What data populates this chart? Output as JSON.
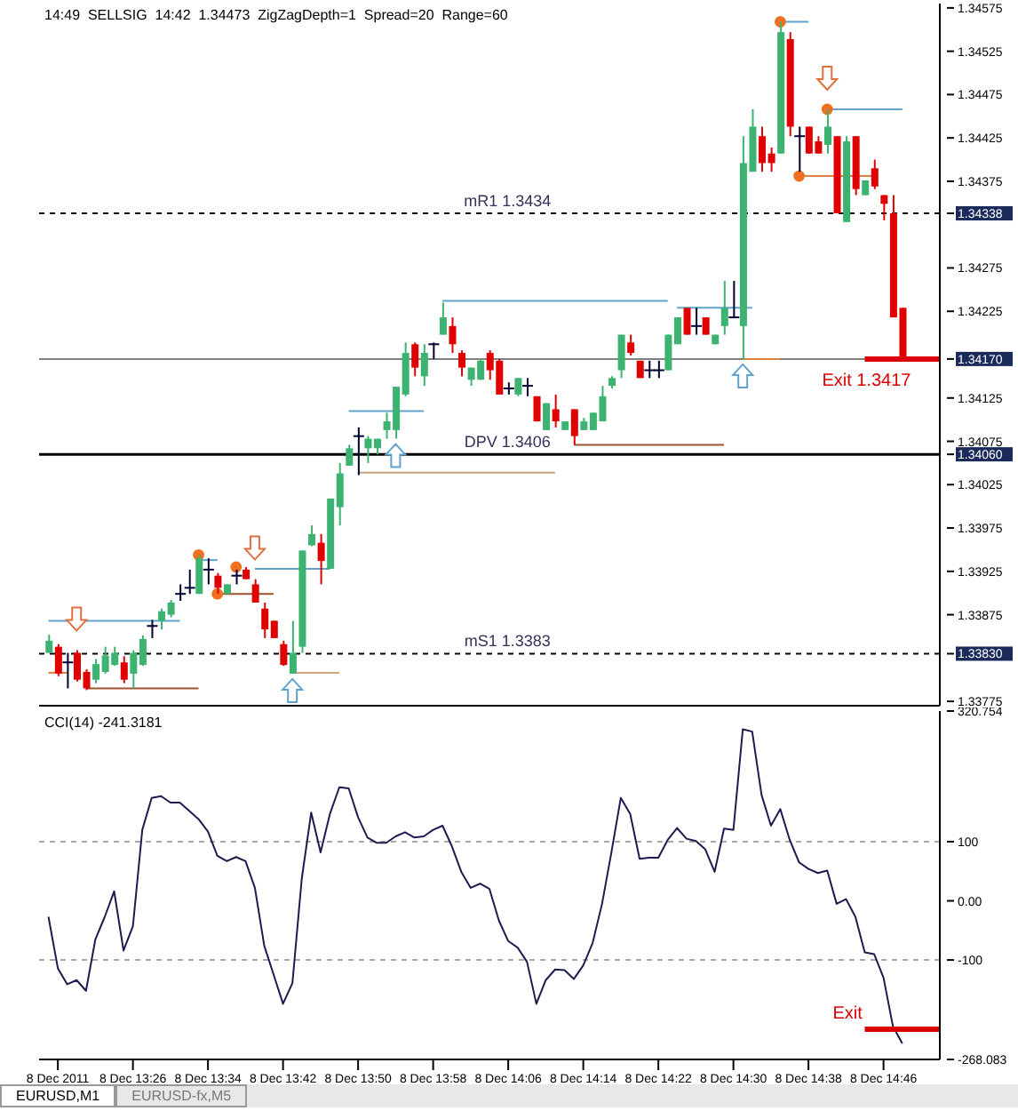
{
  "chart_data": [
    {
      "type": "candlestick",
      "title": "14:49  SELLSIG  14:42  1.34473  ZigZagDepth=1  Spread=20  Range=60",
      "tick_labels": "y",
      "colors": [
        "#3cb371",
        "#e00000",
        "#000033",
        "#e00000",
        "#e00000",
        "#3cb371",
        "#3cb371",
        "#3cb371",
        "#e00000",
        "#3cb371",
        "#3cb371",
        "#000033",
        "#3cb371",
        "#3cb371",
        "#000033",
        "#000033",
        "#3cb371",
        "#000033",
        "#e00000",
        "#3cb371",
        "#000033",
        "#e00000",
        "#e00000",
        "#e00000",
        "#e00000",
        "#e00000",
        "#3cb371",
        "#3cb371",
        "#3cb371",
        "#e00000",
        "#3cb371",
        "#3cb371",
        "#3cb371",
        "#000033",
        "#3cb371",
        "#3cb371",
        "#3cb371",
        "#3cb371",
        "#3cb371",
        "#e00000",
        "#3cb371",
        "#000033",
        "#3cb371",
        "#e00000",
        "#e00000",
        "#3cb371",
        "#3cb371",
        "#e00000",
        "#e00000",
        "#000033",
        "#3cb371",
        "#000033",
        "#e00000",
        "#3cb371",
        "#e00000",
        "#3cb371",
        "#e00000",
        "#3cb371",
        "#3cb371",
        "#3cb371",
        "#3cb371",
        "#3cb371",
        "#e00000",
        "#e00000",
        "#000033",
        "#000033",
        "#3cb371",
        "#3cb371",
        "#e00000",
        "#000033",
        "#e00000",
        "#3cb371",
        "#3cb371",
        "#000033",
        "#3cb371",
        "#3cb371",
        "#e00000",
        "#e00000",
        "#3cb371",
        "#e00000",
        "#000033",
        "#e00000",
        "#e00000",
        "#3cb371",
        "#e00000",
        "#3cb371",
        "#e00000",
        "#3cb371",
        "#e00000",
        "#e00000",
        "#e00000",
        "#e00000"
      ],
      "x": [
        "2011-12-08T13:17",
        "2011-12-08T13:18",
        "2011-12-08T13:19",
        "2011-12-08T13:20",
        "2011-12-08T13:21",
        "2011-12-08T13:22",
        "2011-12-08T13:23",
        "2011-12-08T13:24",
        "2011-12-08T13:25",
        "2011-12-08T13:26",
        "2011-12-08T13:27",
        "2011-12-08T13:28",
        "2011-12-08T13:29",
        "2011-12-08T13:30",
        "2011-12-08T13:31",
        "2011-12-08T13:32",
        "2011-12-08T13:33",
        "2011-12-08T13:34",
        "2011-12-08T13:35",
        "2011-12-08T13:36",
        "2011-12-08T13:37",
        "2011-12-08T13:38",
        "2011-12-08T13:39",
        "2011-12-08T13:40",
        "2011-12-08T13:41",
        "2011-12-08T13:42",
        "2011-12-08T13:43",
        "2011-12-08T13:44",
        "2011-12-08T13:45",
        "2011-12-08T13:46",
        "2011-12-08T13:47",
        "2011-12-08T13:48",
        "2011-12-08T13:49",
        "2011-12-08T13:50",
        "2011-12-08T13:51",
        "2011-12-08T13:52",
        "2011-12-08T13:53",
        "2011-12-08T13:54",
        "2011-12-08T13:55",
        "2011-12-08T13:56",
        "2011-12-08T13:57",
        "2011-12-08T13:58",
        "2011-12-08T13:59",
        "2011-12-08T14:00",
        "2011-12-08T14:01",
        "2011-12-08T14:02",
        "2011-12-08T14:03",
        "2011-12-08T14:04",
        "2011-12-08T14:05",
        "2011-12-08T14:06",
        "2011-12-08T14:07",
        "2011-12-08T14:08",
        "2011-12-08T14:09",
        "2011-12-08T14:10",
        "2011-12-08T14:11",
        "2011-12-08T14:12",
        "2011-12-08T14:13",
        "2011-12-08T14:14",
        "2011-12-08T14:15",
        "2011-12-08T14:16",
        "2011-12-08T14:17",
        "2011-12-08T14:18",
        "2011-12-08T14:19",
        "2011-12-08T14:20",
        "2011-12-08T14:21",
        "2011-12-08T14:22",
        "2011-12-08T14:23",
        "2011-12-08T14:24",
        "2011-12-08T14:25",
        "2011-12-08T14:26",
        "2011-12-08T14:27",
        "2011-12-08T14:28",
        "2011-12-08T14:29",
        "2011-12-08T14:30",
        "2011-12-08T14:31",
        "2011-12-08T14:32",
        "2011-12-08T14:33",
        "2011-12-08T14:34",
        "2011-12-08T14:35",
        "2011-12-08T14:36",
        "2011-12-08T14:37",
        "2011-12-08T14:38",
        "2011-12-08T14:39",
        "2011-12-08T14:40",
        "2011-12-08T14:41",
        "2011-12-08T14:42",
        "2011-12-08T14:43",
        "2011-12-08T14:44",
        "2011-12-08T14:45",
        "2011-12-08T14:46",
        "2011-12-08T14:47",
        "2011-12-08T14:48"
      ],
      "ohlc": [
        [
          1.33831,
          1.33852,
          1.33831,
          1.33845
        ],
        [
          1.33838,
          1.33841,
          1.33804,
          1.33807
        ],
        [
          1.3382,
          1.33831,
          1.3379,
          1.3382
        ],
        [
          1.33831,
          1.33834,
          1.33798,
          1.338
        ],
        [
          1.33809,
          1.33812,
          1.33788,
          1.3379
        ],
        [
          1.338,
          1.33824,
          1.33796,
          1.33818
        ],
        [
          1.33809,
          1.33838,
          1.33807,
          1.33828
        ],
        [
          1.33817,
          1.33838,
          1.33816,
          1.33831
        ],
        [
          1.3382,
          1.33827,
          1.33796,
          1.338
        ],
        [
          1.33807,
          1.33834,
          1.3379,
          1.33831
        ],
        [
          1.33817,
          1.33851,
          1.33816,
          1.33847
        ],
        [
          1.33862,
          1.33869,
          1.33848,
          1.33862
        ],
        [
          1.33868,
          1.33882,
          1.33858,
          1.33879
        ],
        [
          1.33875,
          1.33892,
          1.33872,
          1.33889
        ],
        [
          1.33899,
          1.3391,
          1.33891,
          1.33899
        ],
        [
          1.33906,
          1.33927,
          1.33899,
          1.33906
        ],
        [
          1.33899,
          1.33944,
          1.33899,
          1.3394
        ],
        [
          1.33927,
          1.3394,
          1.3391,
          1.33927
        ],
        [
          1.3392,
          1.33923,
          1.33899,
          1.33906
        ],
        [
          1.33899,
          1.3391,
          1.33899,
          1.3391
        ],
        [
          1.3392,
          1.33927,
          1.3391,
          1.3392
        ],
        [
          1.33927,
          1.3393,
          1.33916,
          1.33916
        ],
        [
          1.3391,
          1.33916,
          1.33889,
          1.33889
        ],
        [
          1.33882,
          1.33889,
          1.33848,
          1.33858
        ],
        [
          1.33868,
          1.33868,
          1.33848,
          1.33848
        ],
        [
          1.33841,
          1.33845,
          1.33816,
          1.33817
        ],
        [
          1.33807,
          1.33868,
          1.33807,
          1.33831
        ],
        [
          1.33838,
          1.33949,
          1.33831,
          1.33949
        ],
        [
          1.33955,
          1.33978,
          1.33954,
          1.33968
        ],
        [
          1.33958,
          1.33968,
          1.3391,
          1.33937
        ],
        [
          1.33928,
          1.34009,
          1.33928,
          1.34009
        ],
        [
          1.33999,
          1.3405,
          1.33978,
          1.34038
        ],
        [
          1.34047,
          1.34071,
          1.34047,
          1.34067
        ],
        [
          1.34081,
          1.34091,
          1.34036,
          1.34081
        ],
        [
          1.34067,
          1.34081,
          1.3405,
          1.34078
        ],
        [
          1.34067,
          1.34078,
          1.3406,
          1.34078
        ],
        [
          1.34088,
          1.34108,
          1.34078,
          1.34098
        ],
        [
          1.34088,
          1.34138,
          1.34078,
          1.34138
        ],
        [
          1.34129,
          1.34189,
          1.34127,
          1.34177
        ],
        [
          1.34187,
          1.34189,
          1.3415,
          1.3416
        ],
        [
          1.3415,
          1.34187,
          1.34139,
          1.34177
        ],
        [
          1.34187,
          1.34189,
          1.3417,
          1.34187
        ],
        [
          1.34198,
          1.34235,
          1.34198,
          1.34218
        ],
        [
          1.34208,
          1.34218,
          1.34177,
          1.34187
        ],
        [
          1.34177,
          1.3418,
          1.3415,
          1.3416
        ],
        [
          1.34146,
          1.3416,
          1.34139,
          1.3416
        ],
        [
          1.34146,
          1.3417,
          1.34146,
          1.34168
        ],
        [
          1.34177,
          1.3418,
          1.34146,
          1.34157
        ],
        [
          1.34168,
          1.3417,
          1.34129,
          1.34129
        ],
        [
          1.34136,
          1.34143,
          1.34129,
          1.34136
        ],
        [
          1.34129,
          1.34148,
          1.34127,
          1.34148
        ],
        [
          1.34139,
          1.34148,
          1.34127,
          1.34139
        ],
        [
          1.34127,
          1.34127,
          1.34098,
          1.34098
        ],
        [
          1.34088,
          1.34119,
          1.34088,
          1.34119
        ],
        [
          1.34112,
          1.34129,
          1.34091,
          1.34098
        ],
        [
          1.34088,
          1.34098,
          1.34088,
          1.34098
        ],
        [
          1.34112,
          1.34112,
          1.34071,
          1.34081
        ],
        [
          1.34088,
          1.34102,
          1.34088,
          1.34098
        ],
        [
          1.34088,
          1.34108,
          1.34088,
          1.34108
        ],
        [
          1.34098,
          1.34139,
          1.34098,
          1.34127
        ],
        [
          1.34139,
          1.3415,
          1.34136,
          1.34148
        ],
        [
          1.34157,
          1.34198,
          1.34148,
          1.34198
        ],
        [
          1.34189,
          1.34198,
          1.34174,
          1.34177
        ],
        [
          1.34168,
          1.34168,
          1.34148,
          1.34148
        ],
        [
          1.34157,
          1.34168,
          1.34148,
          1.34157
        ],
        [
          1.34157,
          1.34168,
          1.34148,
          1.34157
        ],
        [
          1.34157,
          1.34198,
          1.34157,
          1.34198
        ],
        [
          1.34187,
          1.34218,
          1.34187,
          1.34218
        ],
        [
          1.34229,
          1.34229,
          1.34198,
          1.34198
        ],
        [
          1.34208,
          1.34229,
          1.34198,
          1.34208
        ],
        [
          1.34218,
          1.34218,
          1.34198,
          1.34198
        ],
        [
          1.34187,
          1.34198,
          1.34187,
          1.34198
        ],
        [
          1.34208,
          1.3426,
          1.34198,
          1.34229
        ],
        [
          1.34218,
          1.3426,
          1.34218,
          1.34218
        ],
        [
          1.34208,
          1.34427,
          1.3417,
          1.34396
        ],
        [
          1.34386,
          1.34458,
          1.34386,
          1.34438
        ],
        [
          1.34427,
          1.34438,
          1.34386,
          1.34396
        ],
        [
          1.34407,
          1.34414,
          1.34386,
          1.34396
        ],
        [
          1.34407,
          1.34559,
          1.34407,
          1.34547
        ],
        [
          1.34539,
          1.34547,
          1.34427,
          1.34438
        ],
        [
          1.34427,
          1.34438,
          1.34386,
          1.34427
        ],
        [
          1.34438,
          1.34438,
          1.34407,
          1.34407
        ],
        [
          1.34421,
          1.34427,
          1.34407,
          1.34407
        ],
        [
          1.34417,
          1.34458,
          1.34407,
          1.34438
        ],
        [
          1.34427,
          1.34427,
          1.34338,
          1.34338
        ],
        [
          1.34328,
          1.34427,
          1.34328,
          1.34421
        ],
        [
          1.34427,
          1.34427,
          1.34359,
          1.34366
        ],
        [
          1.34359,
          1.34376,
          1.34359,
          1.34376
        ],
        [
          1.3439,
          1.344,
          1.34366,
          1.34369
        ],
        [
          1.34359,
          1.34359,
          1.3433,
          1.34349
        ],
        [
          1.34338,
          1.34359,
          1.34218,
          1.34218
        ],
        [
          1.34229,
          1.34229,
          1.3417,
          1.3417
        ]
      ],
      "series": [
        {
          "type": "line",
          "x": [
            "2011-12-08T13:17",
            "2011-12-08T13:31"
          ],
          "values": [
            1.33868,
            1.33868
          ],
          "color": "#5fa3cc"
        },
        {
          "type": "line",
          "x": [
            "2011-12-08T13:33",
            "2011-12-08T13:35"
          ],
          "values": [
            1.33938,
            1.33938
          ],
          "color": "#5fa3cc"
        },
        {
          "type": "line",
          "x": [
            "2011-12-08T13:39",
            "2011-12-08T13:47"
          ],
          "values": [
            1.33928,
            1.33928
          ],
          "color": "#5fa3cc"
        },
        {
          "type": "line",
          "x": [
            "2011-12-08T13:49",
            "2011-12-08T13:57"
          ],
          "values": [
            1.3411,
            1.3411
          ],
          "color": "#5fa3cc"
        },
        {
          "type": "line",
          "x": [
            "2011-12-08T13:59",
            "2011-12-08T14:23"
          ],
          "values": [
            1.34237,
            1.34237
          ],
          "color": "#5fa3cc"
        },
        {
          "type": "line",
          "x": [
            "2011-12-08T14:24",
            "2011-12-08T14:32"
          ],
          "values": [
            1.34229,
            1.34229
          ],
          "color": "#5fa3cc"
        },
        {
          "type": "line",
          "x": [
            "2011-12-08T14:35",
            "2011-12-08T14:38"
          ],
          "values": [
            1.34559,
            1.34559
          ],
          "color": "#5fa3cc"
        },
        {
          "type": "line",
          "x": [
            "2011-12-08T14:40",
            "2011-12-08T14:48"
          ],
          "values": [
            1.34458,
            1.34458
          ],
          "color": "#5fa3cc"
        },
        {
          "type": "line",
          "x": [
            "2011-12-08T13:21",
            "2011-12-08T13:33"
          ],
          "values": [
            1.3379,
            1.3379
          ],
          "color": "#a0522d"
        },
        {
          "type": "line",
          "x": [
            "2011-12-08T13:35",
            "2011-12-08T13:41"
          ],
          "values": [
            1.33899,
            1.33899
          ],
          "color": "#a0522d"
        },
        {
          "type": "line",
          "x": [
            "2011-12-08T13:50",
            "2011-12-08T14:11"
          ],
          "values": [
            1.34039,
            1.34039
          ],
          "color": "#c8a07a"
        },
        {
          "type": "line",
          "x": [
            "2011-12-08T14:13",
            "2011-12-08T14:29"
          ],
          "values": [
            1.34071,
            1.34071
          ],
          "color": "#a0522d"
        },
        {
          "type": "line",
          "x": [
            "2011-12-08T13:17",
            "2011-12-08T13:19"
          ],
          "values": [
            1.33808,
            1.33808
          ],
          "color": "#e08040"
        },
        {
          "type": "line",
          "x": [
            "2011-12-08T13:43",
            "2011-12-08T13:48"
          ],
          "values": [
            1.33808,
            1.33808
          ],
          "color": "#d2a57a"
        },
        {
          "type": "line",
          "x": [
            "2011-12-08T14:31",
            "2011-12-08T14:35"
          ],
          "values": [
            1.3417,
            1.3417
          ],
          "color": "#e08040"
        },
        {
          "type": "line",
          "x": [
            "2011-12-08T14:37",
            "2011-12-08T14:45"
          ],
          "values": [
            1.34381,
            1.34381
          ],
          "color": "#e08040"
        },
        {
          "type": "scatter",
          "marker": "circle",
          "x": [
            "2011-12-08T13:33",
            "2011-12-08T13:35",
            "2011-12-08T13:37",
            "2011-12-08T14:35",
            "2011-12-08T14:37",
            "2011-12-08T14:40"
          ],
          "values": [
            1.33944,
            1.33899,
            1.3393,
            1.34559,
            1.34381,
            1.34458
          ],
          "color": "#f07020"
        },
        {
          "type": "line",
          "name": "Exit 1.3417",
          "x": [
            "2011-12-08T14:44",
            "2011-12-08T14:52"
          ],
          "values": [
            1.3417,
            1.3417
          ],
          "color": "#dd0000"
        }
      ],
      "xlim": [
        "2011-12-08T13:16",
        "2011-12-08T14:52"
      ],
      "ylim": [
        1.3377,
        1.3458
      ],
      "yticks": [
        1.34575,
        1.34525,
        1.34475,
        1.34425,
        1.34375,
        1.34338,
        1.34275,
        1.34225,
        {
          "value": 1.3417,
          "label": "1.34170"
        },
        1.34125,
        1.34075,
        {
          "value": 1.3406,
          "label": "1.34060"
        },
        1.34025,
        1.33975,
        1.33925,
        1.33875,
        {
          "value": 1.3383,
          "label": "1.33830"
        },
        1.33775
      ],
      "ref_lines": [
        {
          "axis": "y",
          "value": 1.34338,
          "label": "mR1 1.3434",
          "color": "#000000",
          "line_style": "dashed"
        },
        {
          "axis": "y",
          "value": 1.3417,
          "color": "#808080"
        },
        {
          "axis": "y",
          "value": 1.3406,
          "label": "DPV 1.3406",
          "color": "#000000"
        },
        {
          "axis": "y",
          "value": 1.3383,
          "label": "mS1 1.3383",
          "color": "#000000",
          "line_style": "dashed"
        }
      ]
    },
    {
      "type": "line",
      "title": "CCI(14) -241.3181",
      "annotations": [
        "EURUSD,M1",
        "EURUSD-fx,M5"
      ],
      "x": [
        "2011-12-08T13:17",
        "2011-12-08T13:18",
        "2011-12-08T13:19",
        "2011-12-08T13:20",
        "2011-12-08T13:21",
        "2011-12-08T13:22",
        "2011-12-08T13:23",
        "2011-12-08T13:24",
        "2011-12-08T13:25",
        "2011-12-08T13:26",
        "2011-12-08T13:27",
        "2011-12-08T13:28",
        "2011-12-08T13:29",
        "2011-12-08T13:30",
        "2011-12-08T13:31",
        "2011-12-08T13:32",
        "2011-12-08T13:33",
        "2011-12-08T13:34",
        "2011-12-08T13:35",
        "2011-12-08T13:36",
        "2011-12-08T13:37",
        "2011-12-08T13:38",
        "2011-12-08T13:39",
        "2011-12-08T13:40",
        "2011-12-08T13:41",
        "2011-12-08T13:42",
        "2011-12-08T13:43",
        "2011-12-08T13:44",
        "2011-12-08T13:45",
        "2011-12-08T13:46",
        "2011-12-08T13:47",
        "2011-12-08T13:48",
        "2011-12-08T13:49",
        "2011-12-08T13:50",
        "2011-12-08T13:51",
        "2011-12-08T13:52",
        "2011-12-08T13:53",
        "2011-12-08T13:54",
        "2011-12-08T13:55",
        "2011-12-08T13:56",
        "2011-12-08T13:57",
        "2011-12-08T13:58",
        "2011-12-08T13:59",
        "2011-12-08T14:00",
        "2011-12-08T14:01",
        "2011-12-08T14:02",
        "2011-12-08T14:03",
        "2011-12-08T14:04",
        "2011-12-08T14:05",
        "2011-12-08T14:06",
        "2011-12-08T14:07",
        "2011-12-08T14:08",
        "2011-12-08T14:09",
        "2011-12-08T14:10",
        "2011-12-08T14:11",
        "2011-12-08T14:12",
        "2011-12-08T14:13",
        "2011-12-08T14:14",
        "2011-12-08T14:15",
        "2011-12-08T14:16",
        "2011-12-08T14:17",
        "2011-12-08T14:18",
        "2011-12-08T14:19",
        "2011-12-08T14:20",
        "2011-12-08T14:21",
        "2011-12-08T14:22",
        "2011-12-08T14:23",
        "2011-12-08T14:24",
        "2011-12-08T14:25",
        "2011-12-08T14:26",
        "2011-12-08T14:27",
        "2011-12-08T14:28",
        "2011-12-08T14:29",
        "2011-12-08T14:30",
        "2011-12-08T14:31",
        "2011-12-08T14:32",
        "2011-12-08T14:33",
        "2011-12-08T14:34",
        "2011-12-08T14:35",
        "2011-12-08T14:36",
        "2011-12-08T14:37",
        "2011-12-08T14:38",
        "2011-12-08T14:39",
        "2011-12-08T14:40",
        "2011-12-08T14:41",
        "2011-12-08T14:42",
        "2011-12-08T14:43",
        "2011-12-08T14:44",
        "2011-12-08T14:45",
        "2011-12-08T14:46",
        "2011-12-08T14:47",
        "2011-12-08T14:48"
      ],
      "series": [
        {
          "color": "#1c1c50",
          "values": [
            -27,
            -114,
            -141,
            -134,
            -152,
            -65,
            -27,
            16,
            -84,
            -43,
            120,
            174,
            177,
            166,
            166,
            152,
            138,
            117,
            76,
            67,
            74,
            67,
            22,
            -76,
            -125,
            -174,
            -139,
            38,
            149,
            82,
            147,
            192,
            190,
            141,
            107,
            98,
            98,
            109,
            116,
            107,
            109,
            120,
            127,
            92,
            49,
            22,
            29,
            20,
            -33,
            -68,
            -79,
            -103,
            -174,
            -134,
            -116,
            -117,
            -132,
            -109,
            -71,
            -5,
            82,
            174,
            147,
            71,
            73,
            73,
            103,
            123,
            105,
            101,
            87,
            49,
            122,
            120,
            290,
            286,
            179,
            127,
            155,
            103,
            65,
            54,
            47,
            51,
            -5,
            3,
            -27,
            -87,
            -90,
            -130,
            -212,
            -241
          ]
        },
        {
          "type": "line",
          "name": "Exit",
          "x": [
            "2011-12-08T14:44",
            "2011-12-08T14:52"
          ],
          "values": [
            -217,
            -217
          ],
          "color": "#dd0000"
        }
      ],
      "xlim": [
        "2011-12-08T13:16",
        "2011-12-08T14:52"
      ],
      "xticks": [
        {
          "value": "2011-12-08T13:18",
          "label": "8 Dec 2011"
        },
        {
          "value": "2011-12-08T13:26",
          "label": "8 Dec 13:26"
        },
        {
          "value": "2011-12-08T13:34",
          "label": "8 Dec 13:34"
        },
        {
          "value": "2011-12-08T13:42",
          "label": "8 Dec 13:42"
        },
        {
          "value": "2011-12-08T13:50",
          "label": "8 Dec 13:50"
        },
        {
          "value": "2011-12-08T13:58",
          "label": "8 Dec 13:58"
        },
        {
          "value": "2011-12-08T14:06",
          "label": "8 Dec 14:06"
        },
        {
          "value": "2011-12-08T14:14",
          "label": "8 Dec 14:14"
        },
        {
          "value": "2011-12-08T14:22",
          "label": "8 Dec 14:22"
        },
        {
          "value": "2011-12-08T14:30",
          "label": "8 Dec 14:30"
        },
        {
          "value": "2011-12-08T14:38",
          "label": "8 Dec 14:38"
        },
        {
          "value": "2011-12-08T14:46",
          "label": "8 Dec 14:46"
        }
      ],
      "ylim": [
        -268.083,
        320.754
      ],
      "yticks": [
        320.754,
        100,
        {
          "value": 0,
          "label": "0.00"
        },
        -100,
        -268.083
      ],
      "ref_lines": [
        {
          "axis": "y",
          "value": 100,
          "color": "#aaaaaa",
          "line_style": "dashed"
        },
        {
          "axis": "y",
          "value": -100,
          "color": "#aaaaaa",
          "line_style": "dashed"
        }
      ]
    }
  ]
}
